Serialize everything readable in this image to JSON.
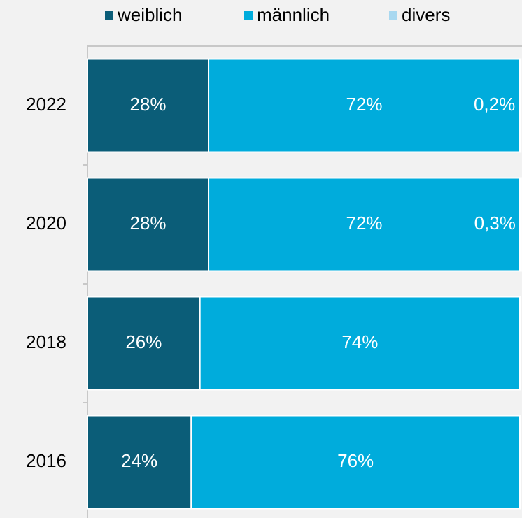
{
  "chart_data": {
    "type": "stacked-barh",
    "categories": [
      "2022",
      "2020",
      "2018",
      "2016"
    ],
    "series": [
      {
        "name": "weiblich",
        "color": "#0b5d78",
        "values": [
          28,
          28,
          26,
          24
        ],
        "value_labels": [
          "28%",
          "28%",
          "26%",
          "24%"
        ]
      },
      {
        "name": "männlich",
        "color": "#00acdc",
        "values": [
          72,
          72,
          74,
          76
        ],
        "value_labels": [
          "72%",
          "72%",
          "74%",
          "76%"
        ]
      },
      {
        "name": "divers",
        "color": "#a8d8f0",
        "values": [
          0.2,
          0.3,
          null,
          null
        ],
        "value_labels": [
          "0,2%",
          "0,3%",
          null,
          null
        ]
      }
    ],
    "xlim": [
      0,
      100
    ],
    "legend": "top"
  }
}
